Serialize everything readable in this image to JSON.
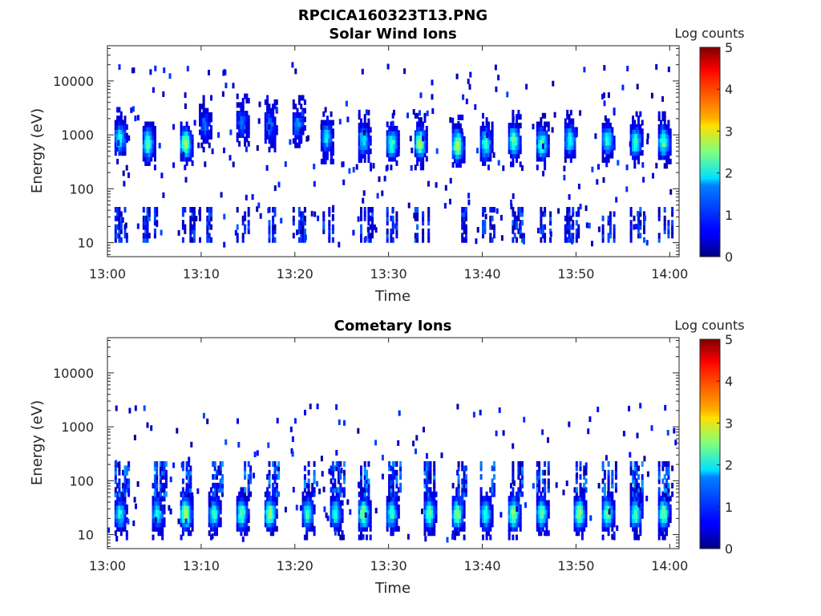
{
  "figure": {
    "title": "RPCICA160323T13.PNG"
  },
  "chart_data": [
    {
      "type": "heatmap",
      "title": "Solar Wind Ions",
      "xlabel": "Time",
      "ylabel": "Energy (eV)",
      "x_range": [
        "13:00",
        "14:01"
      ],
      "x_ticks": [
        "13:00",
        "13:10",
        "13:20",
        "13:30",
        "13:40",
        "13:50",
        "14:00"
      ],
      "y_scale": "log",
      "y_range": [
        5.5,
        45000
      ],
      "y_ticks": [
        10,
        100,
        1000,
        10000
      ],
      "y_tick_labels": [
        "10",
        "100",
        "1000",
        "10000"
      ],
      "colorbar": {
        "label": "Log counts",
        "range": [
          0,
          5
        ],
        "ticks": [
          "0",
          "1",
          "2",
          "3",
          "4",
          "5"
        ],
        "colormap": "jet"
      },
      "grid": false,
      "pulses": [
        {
          "time": "13:01",
          "peak_energy_ev": 900,
          "peak_log_counts": 2.0
        },
        {
          "time": "13:04",
          "peak_energy_ev": 700,
          "peak_log_counts": 2.4
        },
        {
          "time": "13:08",
          "peak_energy_ev": 700,
          "peak_log_counts": 2.7
        },
        {
          "time": "13:10",
          "peak_energy_ev": 1500,
          "peak_log_counts": 1.2
        },
        {
          "time": "13:14",
          "peak_energy_ev": 1600,
          "peak_log_counts": 1.2
        },
        {
          "time": "13:17",
          "peak_energy_ev": 1500,
          "peak_log_counts": 1.3
        },
        {
          "time": "13:20",
          "peak_energy_ev": 1500,
          "peak_log_counts": 1.4
        },
        {
          "time": "13:23",
          "peak_energy_ev": 900,
          "peak_log_counts": 1.8
        },
        {
          "time": "13:27",
          "peak_energy_ev": 800,
          "peak_log_counts": 1.9
        },
        {
          "time": "13:30",
          "peak_energy_ev": 700,
          "peak_log_counts": 2.2
        },
        {
          "time": "13:33",
          "peak_energy_ev": 700,
          "peak_log_counts": 2.7
        },
        {
          "time": "13:37",
          "peak_energy_ev": 650,
          "peak_log_counts": 2.8
        },
        {
          "time": "13:40",
          "peak_energy_ev": 700,
          "peak_log_counts": 2.2
        },
        {
          "time": "13:43",
          "peak_energy_ev": 800,
          "peak_log_counts": 2.4
        },
        {
          "time": "13:46",
          "peak_energy_ev": 700,
          "peak_log_counts": 2.3
        },
        {
          "time": "13:49",
          "peak_energy_ev": 800,
          "peak_log_counts": 2.0
        },
        {
          "time": "13:53",
          "peak_energy_ev": 800,
          "peak_log_counts": 2.1
        },
        {
          "time": "13:56",
          "peak_energy_ev": 750,
          "peak_log_counts": 2.2
        },
        {
          "time": "13:59",
          "peak_energy_ev": 750,
          "peak_log_counts": 2.3
        }
      ]
    },
    {
      "type": "heatmap",
      "title": "Cometary Ions",
      "xlabel": "Time",
      "ylabel": "Energy (eV)",
      "x_range": [
        "13:00",
        "14:01"
      ],
      "x_ticks": [
        "13:00",
        "13:10",
        "13:20",
        "13:30",
        "13:40",
        "13:50",
        "14:00"
      ],
      "y_scale": "log",
      "y_range": [
        5.5,
        45000
      ],
      "y_ticks": [
        10,
        100,
        1000,
        10000
      ],
      "y_tick_labels": [
        "10",
        "100",
        "1000",
        "10000"
      ],
      "colorbar": {
        "label": "Log counts",
        "range": [
          0,
          5
        ],
        "ticks": [
          "0",
          "1",
          "2",
          "3",
          "4",
          "5"
        ],
        "colormap": "jet"
      },
      "grid": false,
      "pulses": [
        {
          "time": "13:01",
          "peak_energy_ev": 25,
          "peak_log_counts": 2.0
        },
        {
          "time": "13:05",
          "peak_energy_ev": 25,
          "peak_log_counts": 2.0
        },
        {
          "time": "13:08",
          "peak_energy_ev": 25,
          "peak_log_counts": 2.8
        },
        {
          "time": "13:11",
          "peak_energy_ev": 25,
          "peak_log_counts": 2.2
        },
        {
          "time": "13:14",
          "peak_energy_ev": 25,
          "peak_log_counts": 2.4
        },
        {
          "time": "13:17",
          "peak_energy_ev": 25,
          "peak_log_counts": 2.6
        },
        {
          "time": "13:21",
          "peak_energy_ev": 25,
          "peak_log_counts": 2.2
        },
        {
          "time": "13:24",
          "peak_energy_ev": 25,
          "peak_log_counts": 2.0
        },
        {
          "time": "13:27",
          "peak_energy_ev": 25,
          "peak_log_counts": 2.6
        },
        {
          "time": "13:30",
          "peak_energy_ev": 25,
          "peak_log_counts": 2.2
        },
        {
          "time": "13:34",
          "peak_energy_ev": 25,
          "peak_log_counts": 2.4
        },
        {
          "time": "13:37",
          "peak_energy_ev": 25,
          "peak_log_counts": 2.6
        },
        {
          "time": "13:40",
          "peak_energy_ev": 25,
          "peak_log_counts": 2.2
        },
        {
          "time": "13:43",
          "peak_energy_ev": 25,
          "peak_log_counts": 2.7
        },
        {
          "time": "13:46",
          "peak_energy_ev": 25,
          "peak_log_counts": 2.3
        },
        {
          "time": "13:50",
          "peak_energy_ev": 25,
          "peak_log_counts": 2.6
        },
        {
          "time": "13:53",
          "peak_energy_ev": 25,
          "peak_log_counts": 2.4
        },
        {
          "time": "13:56",
          "peak_energy_ev": 25,
          "peak_log_counts": 2.3
        },
        {
          "time": "13:59",
          "peak_energy_ev": 25,
          "peak_log_counts": 2.5
        }
      ]
    }
  ]
}
